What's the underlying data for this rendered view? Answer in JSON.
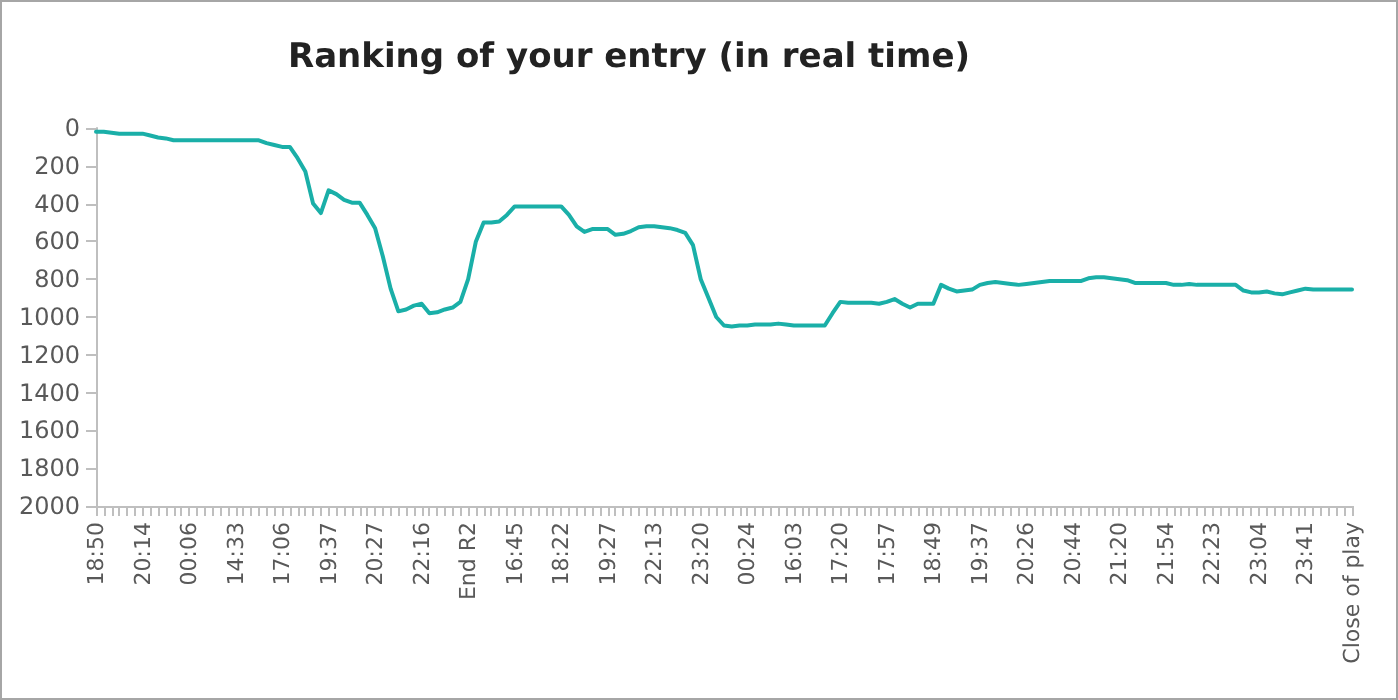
{
  "chart_data": {
    "type": "line",
    "title": "Ranking of your entry (in real time)",
    "categories": [
      "18:50",
      null,
      null,
      null,
      null,
      null,
      "20:14",
      null,
      null,
      null,
      null,
      null,
      "00:06",
      null,
      null,
      null,
      null,
      null,
      "14:33",
      null,
      null,
      null,
      null,
      null,
      "17:06",
      null,
      null,
      null,
      null,
      null,
      "19:37",
      null,
      null,
      null,
      null,
      null,
      "20:27",
      null,
      null,
      null,
      null,
      null,
      "22:16",
      null,
      null,
      null,
      null,
      null,
      "End R2",
      null,
      null,
      null,
      null,
      null,
      "16:45",
      null,
      null,
      null,
      null,
      null,
      "18:22",
      null,
      null,
      null,
      null,
      null,
      "19:27",
      null,
      null,
      null,
      null,
      null,
      "22:13",
      null,
      null,
      null,
      null,
      null,
      "23:20",
      null,
      null,
      null,
      null,
      null,
      "00:24",
      null,
      null,
      null,
      null,
      null,
      "16:03",
      null,
      null,
      null,
      null,
      null,
      "17:20",
      null,
      null,
      null,
      null,
      null,
      "17:57",
      null,
      null,
      null,
      null,
      null,
      "18:49",
      null,
      null,
      null,
      null,
      null,
      "19:37",
      null,
      null,
      null,
      null,
      null,
      "20:26",
      null,
      null,
      null,
      null,
      null,
      "20:44",
      null,
      null,
      null,
      null,
      null,
      "21:20",
      null,
      null,
      null,
      null,
      null,
      "21:54",
      null,
      null,
      null,
      null,
      null,
      "22:23",
      null,
      null,
      null,
      null,
      null,
      "23:04",
      null,
      null,
      null,
      null,
      null,
      "23:41",
      null,
      null,
      null,
      null,
      null,
      "Close of play"
    ],
    "values": [
      20,
      20,
      25,
      30,
      30,
      30,
      30,
      40,
      50,
      55,
      65,
      65,
      65,
      65,
      65,
      65,
      65,
      65,
      65,
      65,
      65,
      65,
      80,
      90,
      100,
      100,
      160,
      230,
      400,
      450,
      330,
      350,
      380,
      395,
      395,
      460,
      530,
      680,
      850,
      970,
      960,
      940,
      930,
      980,
      975,
      960,
      950,
      920,
      800,
      600,
      500,
      500,
      495,
      460,
      415,
      415,
      415,
      415,
      415,
      415,
      415,
      460,
      520,
      550,
      535,
      535,
      535,
      565,
      560,
      545,
      525,
      520,
      520,
      525,
      530,
      540,
      555,
      620,
      800,
      900,
      1000,
      1045,
      1050,
      1045,
      1045,
      1040,
      1040,
      1040,
      1035,
      1040,
      1045,
      1045,
      1045,
      1045,
      1045,
      980,
      920,
      925,
      925,
      925,
      925,
      930,
      920,
      905,
      930,
      950,
      930,
      930,
      930,
      830,
      850,
      865,
      860,
      855,
      830,
      820,
      815,
      820,
      825,
      830,
      825,
      820,
      815,
      810,
      810,
      810,
      810,
      810,
      795,
      790,
      790,
      795,
      800,
      805,
      820,
      820,
      820,
      820,
      820,
      830,
      830,
      825,
      830,
      830,
      830,
      830,
      830,
      830,
      860,
      870,
      870,
      865,
      875,
      880,
      870,
      860,
      850,
      855,
      855,
      855,
      855,
      855,
      855
    ],
    "color": "#1aafa8",
    "ylim": [
      2000,
      0
    ],
    "yticks": [
      0,
      200,
      400,
      600,
      800,
      1000,
      1200,
      1400,
      1600,
      1800,
      2000
    ]
  }
}
